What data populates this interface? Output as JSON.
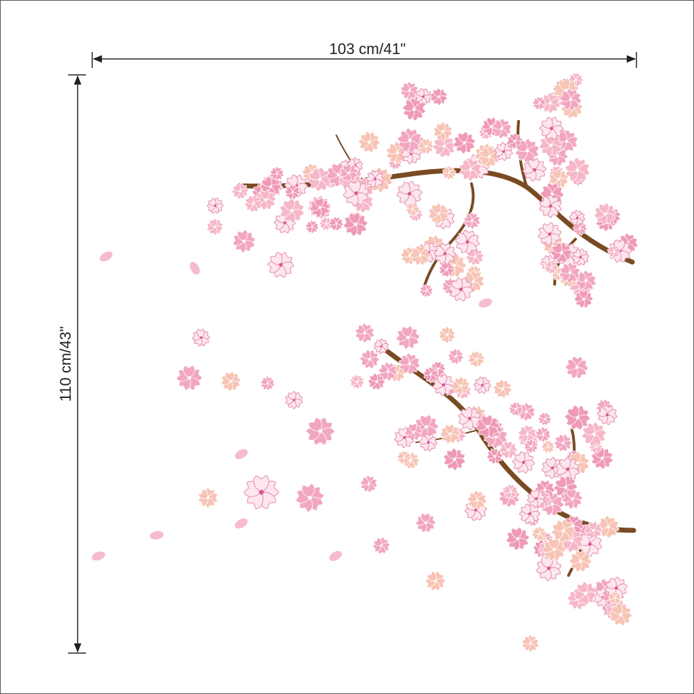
{
  "dimensions": {
    "width_label": "103 cm/41\"",
    "height_label": "110 cm/43\""
  }
}
